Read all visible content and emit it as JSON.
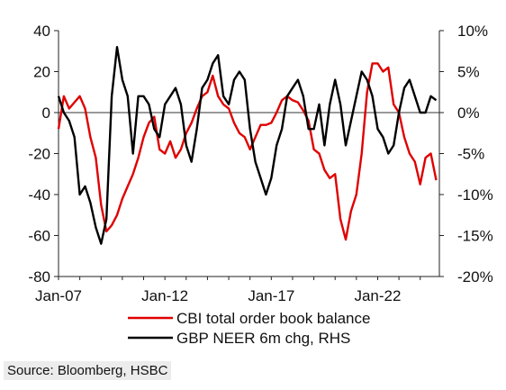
{
  "chart_data": {
    "type": "line",
    "title": "",
    "xlabel": "",
    "ylabel": "",
    "x_ticks": [
      "Jan-07",
      "Jan-12",
      "Jan-17",
      "Jan-22"
    ],
    "ylim_left": [
      -80,
      40
    ],
    "yticks_left": [
      "40",
      "20",
      "0",
      "-20",
      "-40",
      "-60",
      "-80"
    ],
    "ylim_right_pct": [
      -20,
      10
    ],
    "yticks_right": [
      "10%",
      "5%",
      "0%",
      "-5%",
      "-10%",
      "-15%",
      "-20%"
    ],
    "grid": false,
    "legend_position": "bottom",
    "series": [
      {
        "name": "CBI total order book balance",
        "axis": "left",
        "color": "#e00000",
        "points": [
          [
            2007.0,
            -8
          ],
          [
            2007.25,
            8
          ],
          [
            2007.5,
            2
          ],
          [
            2007.75,
            5
          ],
          [
            2008.0,
            8
          ],
          [
            2008.25,
            2
          ],
          [
            2008.5,
            -12
          ],
          [
            2008.75,
            -22
          ],
          [
            2009.0,
            -45
          ],
          [
            2009.25,
            -58
          ],
          [
            2009.5,
            -55
          ],
          [
            2009.75,
            -50
          ],
          [
            2010.0,
            -42
          ],
          [
            2010.25,
            -36
          ],
          [
            2010.5,
            -30
          ],
          [
            2010.75,
            -22
          ],
          [
            2011.0,
            -12
          ],
          [
            2011.25,
            -5
          ],
          [
            2011.5,
            -2
          ],
          [
            2011.75,
            -18
          ],
          [
            2012.0,
            -20
          ],
          [
            2012.25,
            -14
          ],
          [
            2012.5,
            -22
          ],
          [
            2012.75,
            -18
          ],
          [
            2013.0,
            -10
          ],
          [
            2013.25,
            -5
          ],
          [
            2013.5,
            2
          ],
          [
            2013.75,
            8
          ],
          [
            2014.0,
            10
          ],
          [
            2014.25,
            18
          ],
          [
            2014.5,
            8
          ],
          [
            2014.75,
            4
          ],
          [
            2015.0,
            2
          ],
          [
            2015.25,
            -5
          ],
          [
            2015.5,
            -10
          ],
          [
            2015.75,
            -12
          ],
          [
            2016.0,
            -18
          ],
          [
            2016.25,
            -12
          ],
          [
            2016.5,
            -6
          ],
          [
            2016.75,
            -6
          ],
          [
            2017.0,
            -5
          ],
          [
            2017.25,
            0
          ],
          [
            2017.5,
            6
          ],
          [
            2017.75,
            8
          ],
          [
            2018.0,
            6
          ],
          [
            2018.25,
            5
          ],
          [
            2018.5,
            1
          ],
          [
            2018.75,
            -4
          ],
          [
            2019.0,
            -18
          ],
          [
            2019.25,
            -20
          ],
          [
            2019.5,
            -28
          ],
          [
            2019.75,
            -32
          ],
          [
            2020.0,
            -30
          ],
          [
            2020.25,
            -52
          ],
          [
            2020.5,
            -62
          ],
          [
            2020.75,
            -48
          ],
          [
            2021.0,
            -40
          ],
          [
            2021.25,
            -20
          ],
          [
            2021.5,
            10
          ],
          [
            2021.75,
            24
          ],
          [
            2022.0,
            24
          ],
          [
            2022.25,
            20
          ],
          [
            2022.5,
            22
          ],
          [
            2022.75,
            4
          ],
          [
            2023.0,
            0
          ],
          [
            2023.25,
            -12
          ],
          [
            2023.5,
            -20
          ],
          [
            2023.75,
            -24
          ],
          [
            2024.0,
            -35
          ],
          [
            2024.25,
            -22
          ],
          [
            2024.5,
            -20
          ],
          [
            2024.75,
            -33
          ]
        ]
      },
      {
        "name": "GBP NEER 6m chg, RHS",
        "axis": "right",
        "color": "#000000",
        "points": [
          [
            2007.0,
            2
          ],
          [
            2007.25,
            0
          ],
          [
            2007.5,
            -1
          ],
          [
            2007.75,
            -3
          ],
          [
            2008.0,
            -10
          ],
          [
            2008.25,
            -9
          ],
          [
            2008.5,
            -11
          ],
          [
            2008.75,
            -14
          ],
          [
            2009.0,
            -16
          ],
          [
            2009.25,
            -13
          ],
          [
            2009.5,
            2
          ],
          [
            2009.75,
            8
          ],
          [
            2010.0,
            4
          ],
          [
            2010.25,
            2
          ],
          [
            2010.5,
            -5
          ],
          [
            2010.75,
            2
          ],
          [
            2011.0,
            2
          ],
          [
            2011.25,
            1
          ],
          [
            2011.5,
            -2
          ],
          [
            2011.75,
            -3
          ],
          [
            2012.0,
            1
          ],
          [
            2012.25,
            2
          ],
          [
            2012.5,
            3
          ],
          [
            2012.75,
            1
          ],
          [
            2013.0,
            -4
          ],
          [
            2013.25,
            -6
          ],
          [
            2013.5,
            -2
          ],
          [
            2013.75,
            3
          ],
          [
            2014.0,
            4
          ],
          [
            2014.25,
            6
          ],
          [
            2014.5,
            7
          ],
          [
            2014.75,
            2
          ],
          [
            2015.0,
            1
          ],
          [
            2015.25,
            4
          ],
          [
            2015.5,
            5
          ],
          [
            2015.75,
            4
          ],
          [
            2016.0,
            -2
          ],
          [
            2016.25,
            -6
          ],
          [
            2016.5,
            -8
          ],
          [
            2016.75,
            -10
          ],
          [
            2017.0,
            -8
          ],
          [
            2017.25,
            -4
          ],
          [
            2017.5,
            -2
          ],
          [
            2017.75,
            2
          ],
          [
            2018.0,
            3
          ],
          [
            2018.25,
            4
          ],
          [
            2018.5,
            2
          ],
          [
            2018.75,
            -2
          ],
          [
            2019.0,
            -2
          ],
          [
            2019.25,
            1
          ],
          [
            2019.5,
            -4
          ],
          [
            2019.75,
            1
          ],
          [
            2020.0,
            4
          ],
          [
            2020.25,
            1
          ],
          [
            2020.5,
            -4
          ],
          [
            2020.75,
            -1
          ],
          [
            2021.0,
            2
          ],
          [
            2021.25,
            5
          ],
          [
            2021.5,
            4
          ],
          [
            2021.75,
            2
          ],
          [
            2022.0,
            -2
          ],
          [
            2022.25,
            -3
          ],
          [
            2022.5,
            -5
          ],
          [
            2022.75,
            -4
          ],
          [
            2023.0,
            0
          ],
          [
            2023.25,
            3
          ],
          [
            2023.5,
            4
          ],
          [
            2023.75,
            2
          ],
          [
            2024.0,
            0
          ],
          [
            2024.25,
            0
          ],
          [
            2024.5,
            2
          ],
          [
            2024.75,
            1.5
          ]
        ]
      }
    ]
  },
  "footer": {
    "source": "Source: Bloomberg, HSBC"
  }
}
